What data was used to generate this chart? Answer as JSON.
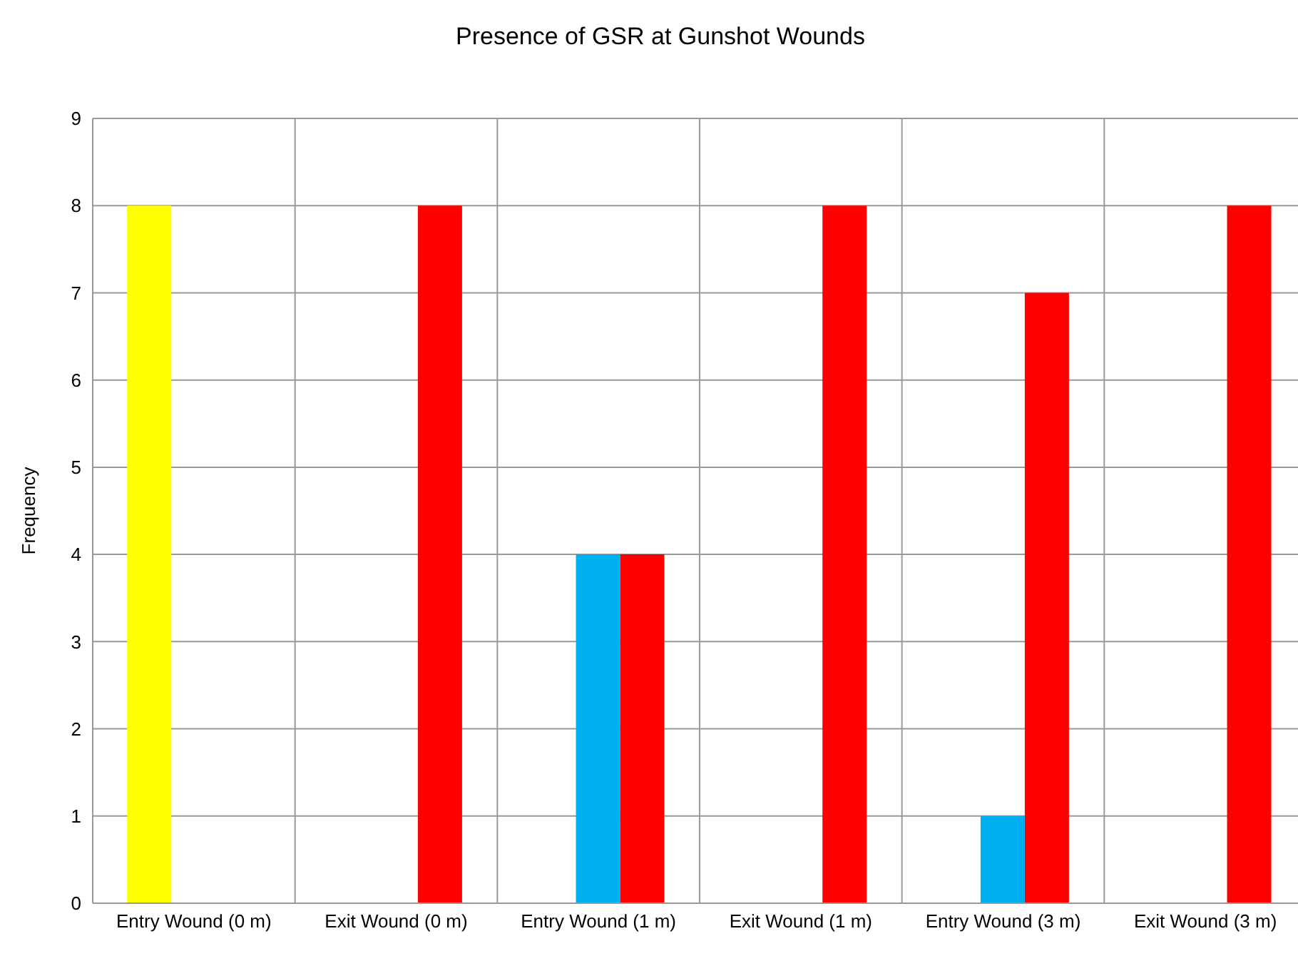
{
  "chart_data": {
    "type": "bar",
    "title": "Presence of GSR at Gunshot Wounds",
    "ylabel": "Frequency",
    "categories": [
      "Entry Wound (0 m)",
      "Exit Wound (0 m)",
      "Entry Wound (1 m)",
      "Exit Wound (1 m)",
      "Entry Wound (3 m)",
      "Exit Wound (3 m)"
    ],
    "series": [
      {
        "color": "#ffff00",
        "values": [
          8,
          0,
          0,
          0,
          0,
          0
        ]
      },
      {
        "color": "#00b0f0",
        "values": [
          0,
          0,
          4,
          0,
          1,
          0
        ]
      },
      {
        "color": "#ff0000",
        "values": [
          0,
          8,
          4,
          8,
          7,
          8
        ]
      }
    ],
    "ylim": [
      0,
      9
    ],
    "yticks": [
      0,
      1,
      2,
      3,
      4,
      5,
      6,
      7,
      8,
      9
    ],
    "grid": true,
    "legend": false
  }
}
